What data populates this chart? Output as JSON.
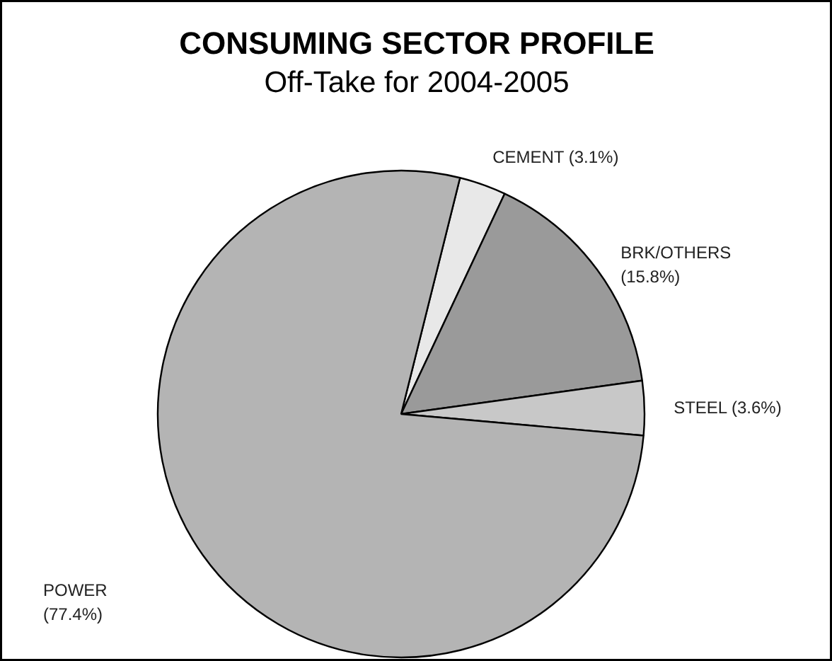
{
  "chart_data": {
    "type": "pie",
    "title": "CONSUMING SECTOR PROFILE",
    "subtitle": "Off-Take for 2004-2005",
    "categories": [
      "CEMENT",
      "BRK/OTHERS",
      "STEEL",
      "POWER"
    ],
    "values": [
      3.1,
      15.8,
      3.6,
      77.4
    ],
    "value_labels": [
      "(3.1%)",
      "(15.8%)",
      "(3.6%)",
      "(77.4%)"
    ],
    "colors": [
      "#e8e8e8",
      "#9a9a9a",
      "#c8c8c8",
      "#b4b4b4"
    ]
  }
}
